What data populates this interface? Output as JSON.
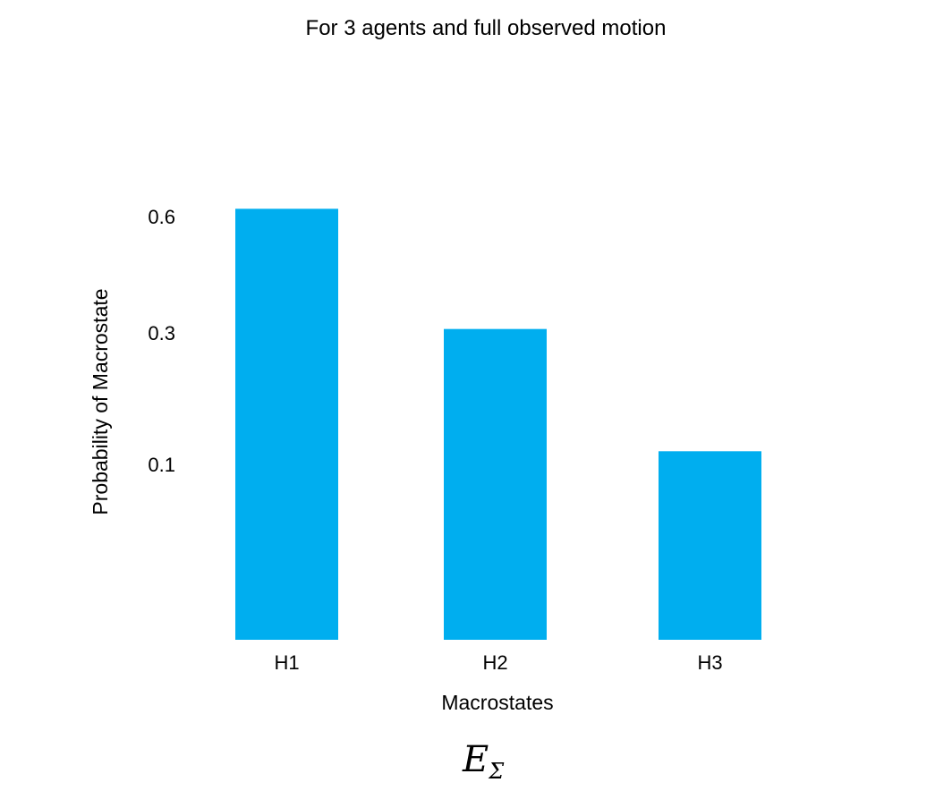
{
  "chart_data": {
    "type": "bar",
    "title": "For 3 agents and full observed motion",
    "xlabel": "Macrostates",
    "ylabel": "Probability of Macrostate",
    "categories": [
      "H1",
      "H2",
      "H3"
    ],
    "values": [
      0.62,
      0.31,
      0.12
    ],
    "y_ticks": [
      {
        "value": 0.1,
        "label": "0.1"
      },
      {
        "value": 0.3,
        "label": "0.3"
      },
      {
        "value": 0.6,
        "label": "0.6"
      }
    ],
    "bar_color": "#00AEEF",
    "grid": false,
    "legend": "none",
    "annotation": {
      "main": "E",
      "sub": "Σ"
    }
  }
}
